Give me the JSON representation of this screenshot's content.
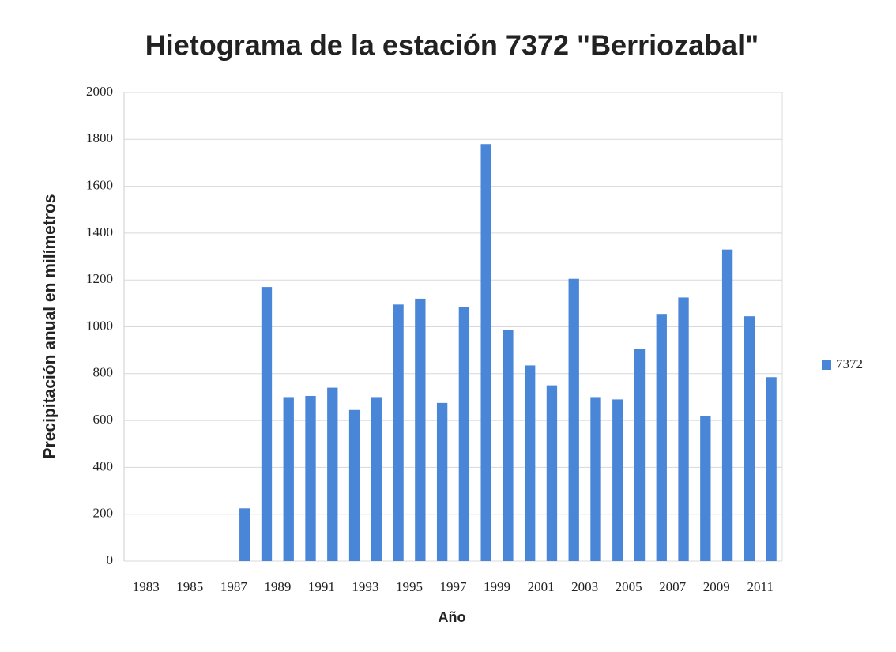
{
  "chart_data": {
    "type": "bar",
    "title": "Hietograma de la estación 7372 \"Berriozabal\"",
    "x_label": "Año",
    "y_label": "Precipitación anual en milímetros",
    "categories": [
      "1983",
      null,
      "1985",
      null,
      "1987",
      null,
      "1989",
      null,
      "1991",
      null,
      "1993",
      null,
      "1995",
      null,
      "1997",
      null,
      "1999",
      null,
      "2001",
      null,
      "2003",
      null,
      "2005",
      null,
      "2007",
      null,
      "2009",
      null,
      "2011",
      null
    ],
    "series": [
      {
        "name": "7372",
        "color": "#4a86d8",
        "values": [
          null,
          null,
          null,
          null,
          null,
          225,
          1170,
          700,
          705,
          740,
          645,
          700,
          1095,
          1120,
          675,
          1085,
          1780,
          985,
          835,
          750,
          1205,
          700,
          690,
          905,
          1055,
          1125,
          620,
          1330,
          1045,
          785
        ]
      }
    ],
    "ylim": [
      0,
      2000
    ],
    "yticks": [
      0,
      200,
      400,
      600,
      800,
      1000,
      1200,
      1400,
      1600,
      1800,
      2000
    ],
    "grid": true,
    "legend": "right"
  }
}
